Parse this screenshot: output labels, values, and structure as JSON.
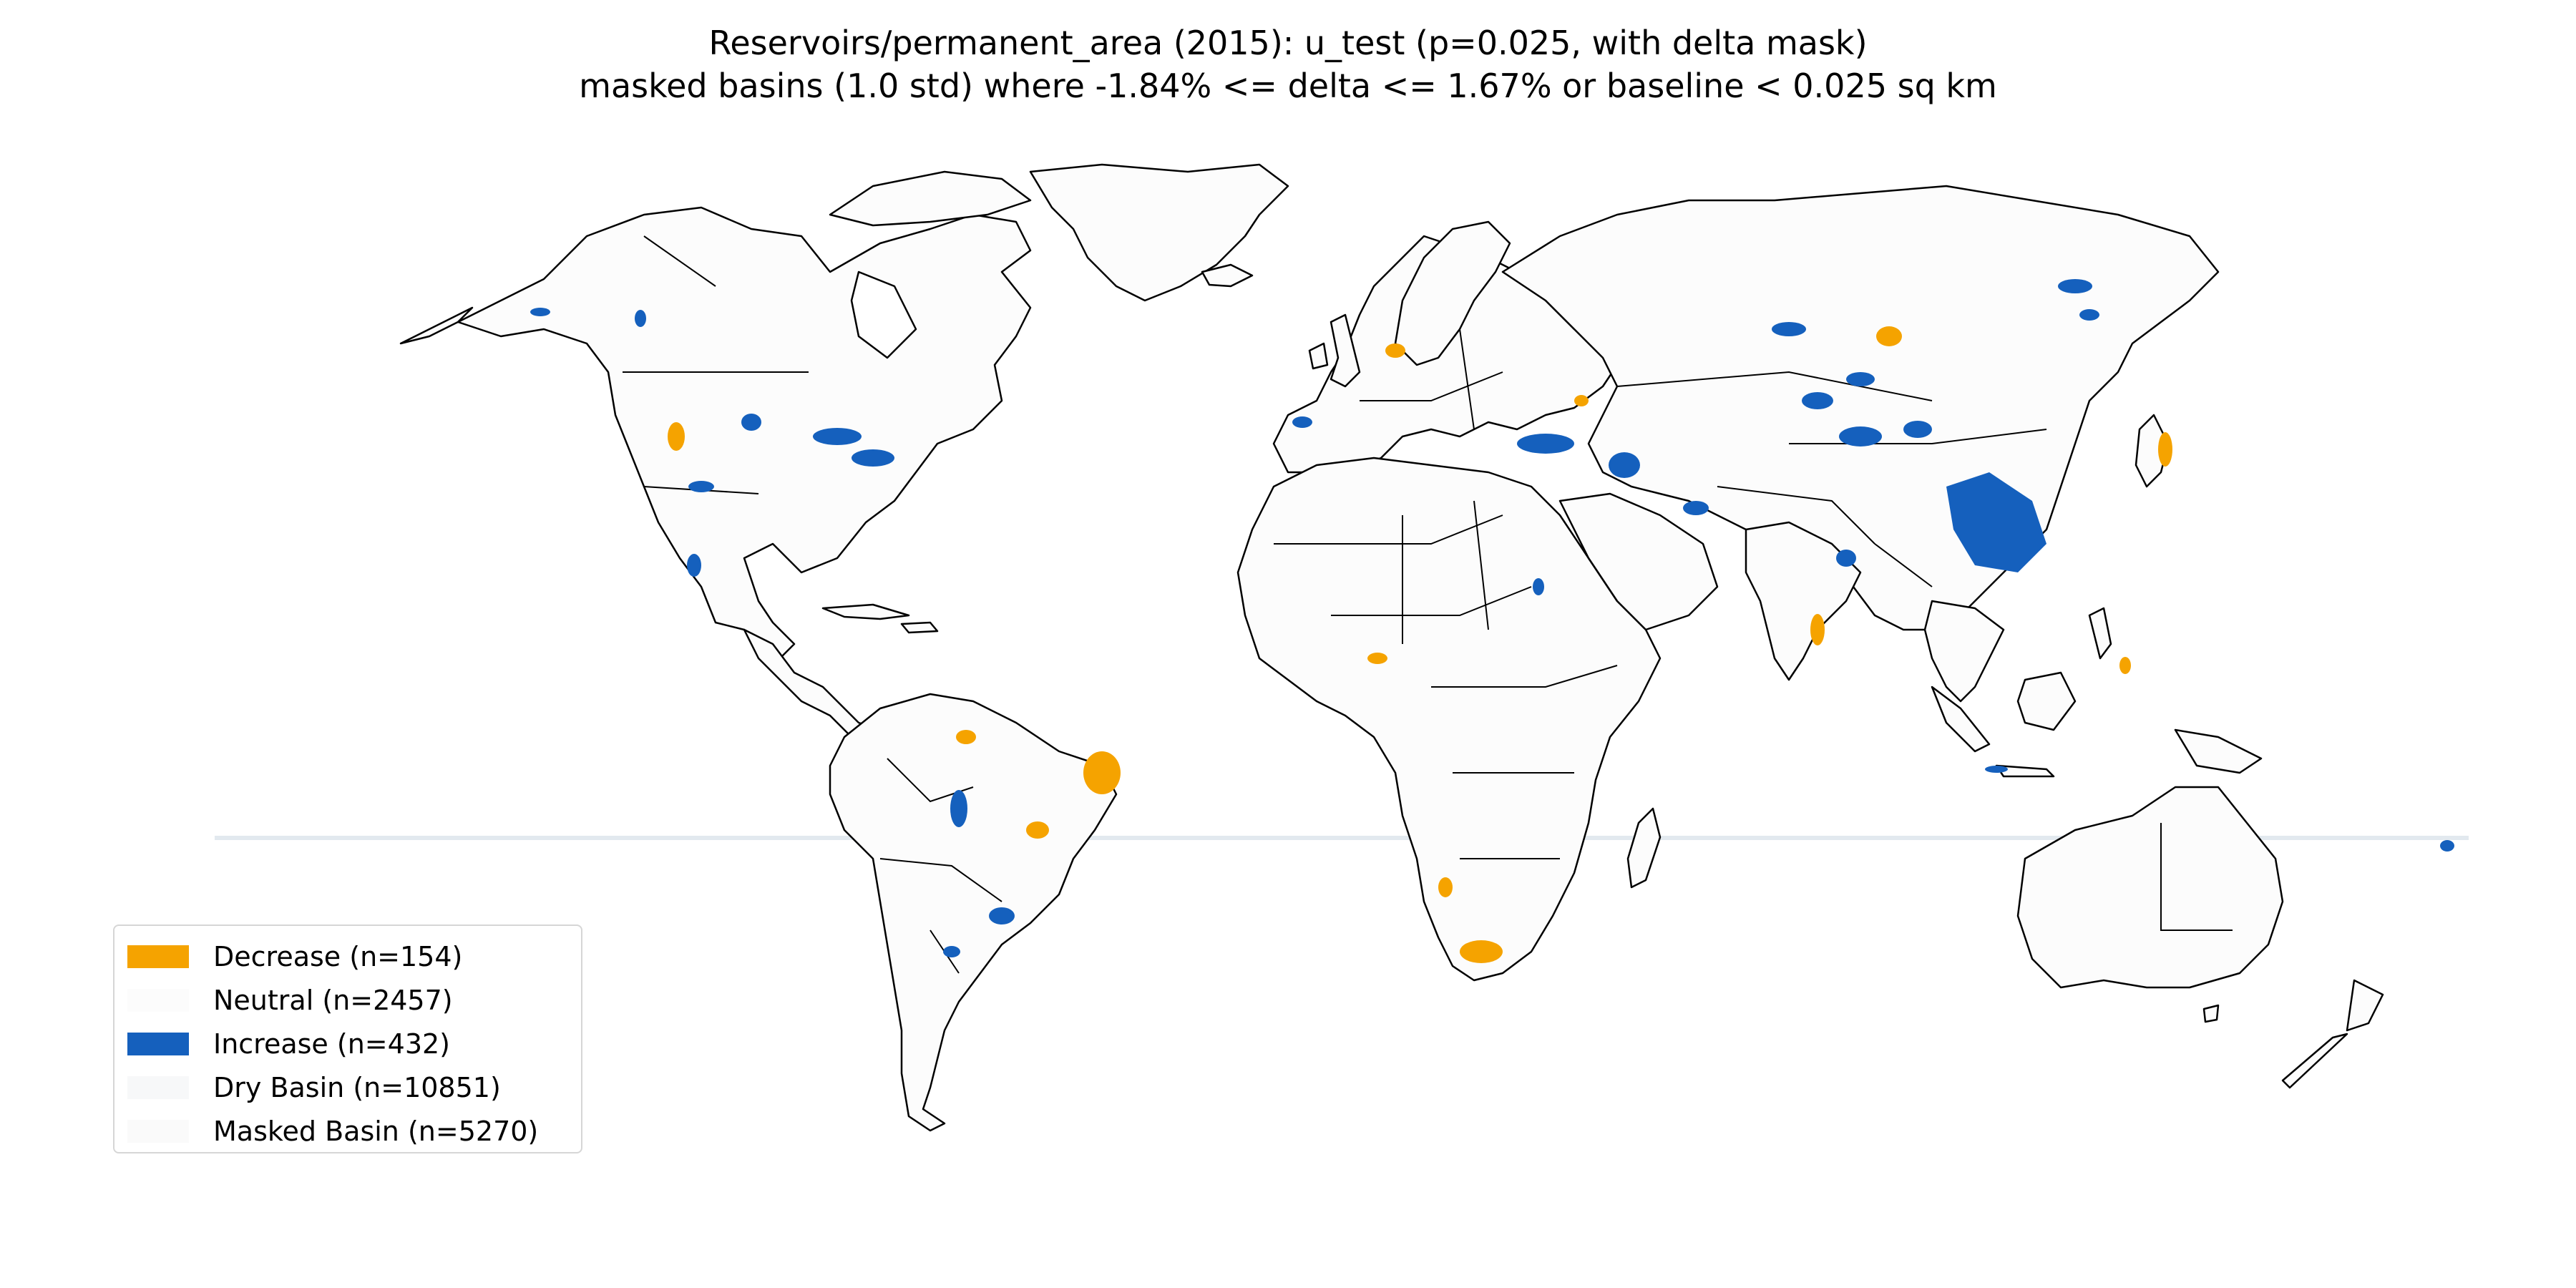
{
  "title": {
    "line1": "Reservoirs/permanent_area (2015): u_test (p=0.025, with delta mask)",
    "line2": "masked basins (1.0 std) where -1.84% <= delta <= 1.67% or baseline < 0.025 sq km"
  },
  "colors": {
    "decrease": "#F5A300",
    "increase": "#1560BD",
    "neutral": "#FCFCFC",
    "dry_basin": "#F7F8F9",
    "masked_basin": "#FAFAFA",
    "outline": "#000000",
    "equator_line": "#dfe7ee"
  },
  "legend": {
    "items": [
      {
        "key": "decrease",
        "label": "Decrease (n=154)",
        "color": "#F5A300"
      },
      {
        "key": "neutral",
        "label": "Neutral (n=2457)",
        "color": "#FCFCFC"
      },
      {
        "key": "increase",
        "label": "Increase (n=432)",
        "color": "#1560BD"
      },
      {
        "key": "dry",
        "label": "Dry Basin (n=10851)",
        "color": "#F7F8F9"
      },
      {
        "key": "masked",
        "label": "Masked Basin (n=5270)",
        "color": "#FAFAFA"
      }
    ]
  },
  "map": {
    "projection": "plate-carree",
    "features": [
      "North America",
      "South America",
      "Greenland",
      "Europe",
      "Africa",
      "Asia",
      "Australia",
      "Madagascar",
      "Japan",
      "Indonesia",
      "New Zealand",
      "Antarctic peninsula excluded"
    ]
  }
}
